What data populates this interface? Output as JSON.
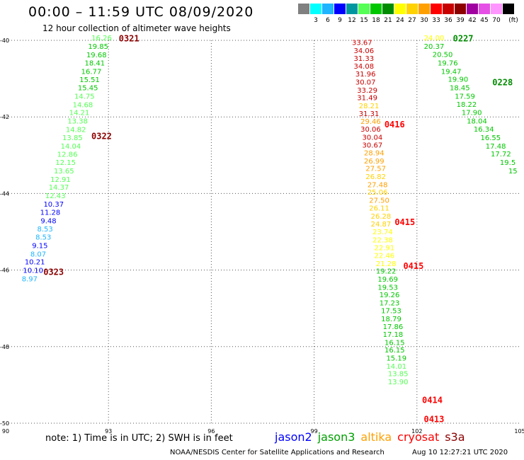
{
  "header": {
    "title": "00:00 – 11:59 UTC 08/09/2020",
    "subtitle": "12 hour collection of altimeter wave heights"
  },
  "color_scale": {
    "unit_label": "(ft)",
    "swatches": [
      {
        "color": "#808080",
        "label": ""
      },
      {
        "color": "#00ffff",
        "label": "3"
      },
      {
        "color": "#1eb4ff",
        "label": "6"
      },
      {
        "color": "#0000ff",
        "label": "9"
      },
      {
        "color": "#0096a0",
        "label": "12"
      },
      {
        "color": "#55ff55",
        "label": "15"
      },
      {
        "color": "#00c800",
        "label": "18"
      },
      {
        "color": "#008c00",
        "label": "21"
      },
      {
        "color": "#ffff00",
        "label": "24"
      },
      {
        "color": "#ffd200",
        "label": "27"
      },
      {
        "color": "#ffa000",
        "label": "30"
      },
      {
        "color": "#ff0000",
        "label": "33"
      },
      {
        "color": "#c80000",
        "label": "36"
      },
      {
        "color": "#8c0000",
        "label": "39"
      },
      {
        "color": "#a000a0",
        "label": "42"
      },
      {
        "color": "#e650e6",
        "label": "45"
      },
      {
        "color": "#ff96ff",
        "label": "70"
      },
      {
        "color": "#000000",
        "label": ""
      }
    ]
  },
  "map": {
    "lon_range": [
      90,
      105
    ],
    "lat_range": [
      -50,
      -40
    ],
    "x_ticks": [
      "90",
      "93",
      "96",
      "99",
      "102",
      "105"
    ],
    "y_ticks": [
      "-40",
      "-42",
      "-44",
      "-46",
      "-48",
      "-50"
    ],
    "grid": true
  },
  "tracks": [
    {
      "pass_labels": [
        {
          "text": "0321",
          "lon": 93.3,
          "lat": -39.95,
          "color": "#8c0000"
        },
        {
          "text": "0322",
          "lon": 92.5,
          "lat": -42.5,
          "color": "#8c0000"
        },
        {
          "text": "0323",
          "lon": 91.1,
          "lat": -46.05,
          "color": "#8c0000"
        }
      ],
      "points": [
        {
          "lon": 92.8,
          "lat": -39.93,
          "v": "16.26",
          "c": "#55ff55"
        },
        {
          "lon": 92.7,
          "lat": -40.15,
          "v": "19.85",
          "c": "#00c800"
        },
        {
          "lon": 92.65,
          "lat": -40.37,
          "v": "19.68",
          "c": "#00c800"
        },
        {
          "lon": 92.6,
          "lat": -40.58,
          "v": "18.41",
          "c": "#00c800"
        },
        {
          "lon": 92.5,
          "lat": -40.8,
          "v": "16.77",
          "c": "#00c800"
        },
        {
          "lon": 92.45,
          "lat": -41.02,
          "v": "15.51",
          "c": "#00c800"
        },
        {
          "lon": 92.4,
          "lat": -41.23,
          "v": "15.45",
          "c": "#00c800"
        },
        {
          "lon": 92.3,
          "lat": -41.45,
          "v": "14.75",
          "c": "#55ff55"
        },
        {
          "lon": 92.25,
          "lat": -41.67,
          "v": "14.68",
          "c": "#55ff55"
        },
        {
          "lon": 92.15,
          "lat": -41.88,
          "v": "14.21",
          "c": "#55ff55"
        },
        {
          "lon": 92.1,
          "lat": -42.1,
          "v": "13.38",
          "c": "#55ff55"
        },
        {
          "lon": 92.05,
          "lat": -42.32,
          "v": "14.82",
          "c": "#55ff55"
        },
        {
          "lon": 91.95,
          "lat": -42.53,
          "v": "13.85",
          "c": "#55ff55"
        },
        {
          "lon": 91.9,
          "lat": -42.75,
          "v": "14.04",
          "c": "#55ff55"
        },
        {
          "lon": 91.8,
          "lat": -42.97,
          "v": "12.86",
          "c": "#55ff55"
        },
        {
          "lon": 91.75,
          "lat": -43.18,
          "v": "12.15",
          "c": "#55ff55"
        },
        {
          "lon": 91.7,
          "lat": -43.4,
          "v": "13.65",
          "c": "#55ff55"
        },
        {
          "lon": 91.6,
          "lat": -43.62,
          "v": "12.91",
          "c": "#55ff55"
        },
        {
          "lon": 91.55,
          "lat": -43.83,
          "v": "14.37",
          "c": "#55ff55"
        },
        {
          "lon": 91.45,
          "lat": -44.05,
          "v": "12.43",
          "c": "#55ff55"
        },
        {
          "lon": 91.4,
          "lat": -44.27,
          "v": "10.37",
          "c": "#0000ff"
        },
        {
          "lon": 91.3,
          "lat": -44.48,
          "v": "11.28",
          "c": "#0000ff"
        },
        {
          "lon": 91.25,
          "lat": -44.7,
          "v": "9.48",
          "c": "#0000ff"
        },
        {
          "lon": 91.15,
          "lat": -44.92,
          "v": "8.53",
          "c": "#1eb4ff"
        },
        {
          "lon": 91.1,
          "lat": -45.13,
          "v": "8.53",
          "c": "#1eb4ff"
        },
        {
          "lon": 91.0,
          "lat": -45.35,
          "v": "9.15",
          "c": "#0000ff"
        },
        {
          "lon": 90.95,
          "lat": -45.57,
          "v": "8.07",
          "c": "#1eb4ff"
        },
        {
          "lon": 90.85,
          "lat": -45.78,
          "v": "10.21",
          "c": "#0000ff"
        },
        {
          "lon": 90.8,
          "lat": -46.0,
          "v": "10.10",
          "c": "#0000ff"
        },
        {
          "lon": 90.7,
          "lat": -46.22,
          "v": "8.97",
          "c": "#1eb4ff"
        }
      ]
    },
    {
      "pass_labels": [
        {
          "text": "0416",
          "lon": 101.05,
          "lat": -42.2,
          "color": "#ff0000"
        },
        {
          "text": "0415",
          "lon": 101.35,
          "lat": -44.75,
          "color": "#ff0000"
        },
        {
          "text": "0415",
          "lon": 101.6,
          "lat": -45.9,
          "color": "#ff0000"
        },
        {
          "text": "0414",
          "lon": 102.15,
          "lat": -49.4,
          "color": "#ff0000"
        },
        {
          "text": "0413",
          "lon": 102.2,
          "lat": -49.9,
          "color": "#ff0000"
        }
      ],
      "points": [
        {
          "lon": 100.4,
          "lat": -40.05,
          "v": "33.67",
          "c": "#c80000"
        },
        {
          "lon": 100.45,
          "lat": -40.26,
          "v": "34.06",
          "c": "#c80000"
        },
        {
          "lon": 100.45,
          "lat": -40.46,
          "v": "31.33",
          "c": "#c80000"
        },
        {
          "lon": 100.45,
          "lat": -40.67,
          "v": "34.08",
          "c": "#c80000"
        },
        {
          "lon": 100.5,
          "lat": -40.87,
          "v": "31.96",
          "c": "#c80000"
        },
        {
          "lon": 100.5,
          "lat": -41.08,
          "v": "30.07",
          "c": "#c80000"
        },
        {
          "lon": 100.55,
          "lat": -41.29,
          "v": "33.29",
          "c": "#c80000"
        },
        {
          "lon": 100.55,
          "lat": -41.49,
          "v": "31.49",
          "c": "#c80000"
        },
        {
          "lon": 100.6,
          "lat": -41.7,
          "v": "28.21",
          "c": "#ffd200"
        },
        {
          "lon": 100.6,
          "lat": -41.9,
          "v": "31.31",
          "c": "#c80000"
        },
        {
          "lon": 100.65,
          "lat": -42.11,
          "v": "29.46",
          "c": "#ffa000"
        },
        {
          "lon": 100.65,
          "lat": -42.31,
          "v": "30.06",
          "c": "#c80000"
        },
        {
          "lon": 100.7,
          "lat": -42.52,
          "v": "30.04",
          "c": "#c80000"
        },
        {
          "lon": 100.7,
          "lat": -42.73,
          "v": "30.67",
          "c": "#c80000"
        },
        {
          "lon": 100.75,
          "lat": -42.93,
          "v": "28.94",
          "c": "#ffa000"
        },
        {
          "lon": 100.75,
          "lat": -43.14,
          "v": "26.99",
          "c": "#ffa000"
        },
        {
          "lon": 100.8,
          "lat": -43.34,
          "v": "27.57",
          "c": "#ffa000"
        },
        {
          "lon": 100.8,
          "lat": -43.55,
          "v": "26.82",
          "c": "#ffd200"
        },
        {
          "lon": 100.85,
          "lat": -43.76,
          "v": "27.48",
          "c": "#ffa000"
        },
        {
          "lon": 100.85,
          "lat": -43.96,
          "v": "25.06",
          "c": "#ffd200"
        },
        {
          "lon": 100.9,
          "lat": -44.17,
          "v": "27.50",
          "c": "#ffa000"
        },
        {
          "lon": 100.9,
          "lat": -44.37,
          "v": "26.11",
          "c": "#ffd200"
        },
        {
          "lon": 100.95,
          "lat": -44.58,
          "v": "26.28",
          "c": "#ffd200"
        },
        {
          "lon": 100.95,
          "lat": -44.79,
          "v": "24.87",
          "c": "#ffd200"
        },
        {
          "lon": 101.0,
          "lat": -44.99,
          "v": "23.74",
          "c": "#ffff00"
        },
        {
          "lon": 101.0,
          "lat": -45.2,
          "v": "22.38",
          "c": "#ffff00"
        },
        {
          "lon": 101.05,
          "lat": -45.41,
          "v": "22.91",
          "c": "#ffff00"
        },
        {
          "lon": 101.05,
          "lat": -45.61,
          "v": "22.46",
          "c": "#ffff00"
        },
        {
          "lon": 101.1,
          "lat": -45.82,
          "v": "21.28",
          "c": "#ffff00"
        },
        {
          "lon": 101.1,
          "lat": -46.02,
          "v": "19.22",
          "c": "#00c800"
        },
        {
          "lon": 101.15,
          "lat": -46.23,
          "v": "19.69",
          "c": "#00c800"
        },
        {
          "lon": 101.15,
          "lat": -46.44,
          "v": "19.53",
          "c": "#00c800"
        },
        {
          "lon": 101.2,
          "lat": -46.64,
          "v": "19.26",
          "c": "#00c800"
        },
        {
          "lon": 101.2,
          "lat": -46.85,
          "v": "17.23",
          "c": "#00c800"
        },
        {
          "lon": 101.25,
          "lat": -47.05,
          "v": "17.53",
          "c": "#00c800"
        },
        {
          "lon": 101.25,
          "lat": -47.26,
          "v": "18.79",
          "c": "#00c800"
        },
        {
          "lon": 101.3,
          "lat": -47.47,
          "v": "17.86",
          "c": "#00c800"
        },
        {
          "lon": 101.3,
          "lat": -47.67,
          "v": "17.18",
          "c": "#00c800"
        },
        {
          "lon": 101.35,
          "lat": -47.88,
          "v": "16.15",
          "c": "#00c800"
        },
        {
          "lon": 101.35,
          "lat": -48.08,
          "v": "16.15",
          "c": "#00c800"
        },
        {
          "lon": 101.4,
          "lat": -48.29,
          "v": "15.19",
          "c": "#00c800"
        },
        {
          "lon": 101.4,
          "lat": -48.5,
          "v": "14.01",
          "c": "#55ff55"
        },
        {
          "lon": 101.45,
          "lat": -48.7,
          "v": "13.85",
          "c": "#55ff55"
        },
        {
          "lon": 101.45,
          "lat": -48.91,
          "v": "13.90",
          "c": "#55ff55"
        }
      ]
    },
    {
      "pass_labels": [
        {
          "text": "0227",
          "lon": 103.05,
          "lat": -39.95,
          "color": "#008c00"
        },
        {
          "text": "0228",
          "lon": 104.2,
          "lat": -41.1,
          "color": "#008c00"
        }
      ],
      "points": [
        {
          "lon": 102.5,
          "lat": -39.93,
          "v": "24.00",
          "c": "#ffff00"
        },
        {
          "lon": 102.5,
          "lat": -40.15,
          "v": "20.37",
          "c": "#00c800"
        },
        {
          "lon": 102.75,
          "lat": -40.36,
          "v": "20.50",
          "c": "#00c800"
        },
        {
          "lon": 102.9,
          "lat": -40.58,
          "v": "19.76",
          "c": "#00c800"
        },
        {
          "lon": 103.0,
          "lat": -40.8,
          "v": "19.47",
          "c": "#00c800"
        },
        {
          "lon": 103.2,
          "lat": -41.01,
          "v": "19.90",
          "c": "#00c800"
        },
        {
          "lon": 103.25,
          "lat": -41.23,
          "v": "18.45",
          "c": "#00c800"
        },
        {
          "lon": 103.4,
          "lat": -41.45,
          "v": "17.59",
          "c": "#00c800"
        },
        {
          "lon": 103.45,
          "lat": -41.66,
          "v": "18.22",
          "c": "#00c800"
        },
        {
          "lon": 103.6,
          "lat": -41.88,
          "v": "17.90",
          "c": "#00c800"
        },
        {
          "lon": 103.75,
          "lat": -42.1,
          "v": "18.04",
          "c": "#00c800"
        },
        {
          "lon": 103.95,
          "lat": -42.31,
          "v": "16.34",
          "c": "#00c800"
        },
        {
          "lon": 104.15,
          "lat": -42.53,
          "v": "16.55",
          "c": "#00c800"
        },
        {
          "lon": 104.3,
          "lat": -42.75,
          "v": "17.48",
          "c": "#00c800"
        },
        {
          "lon": 104.45,
          "lat": -42.96,
          "v": "17.72",
          "c": "#00c800"
        },
        {
          "lon": 104.65,
          "lat": -43.18,
          "v": "19.5",
          "c": "#00c800"
        },
        {
          "lon": 104.8,
          "lat": -43.4,
          "v": "15",
          "c": "#00c800"
        }
      ]
    }
  ],
  "footer": {
    "note": "note:  1) Time is in UTC; 2) SWH is in feet",
    "legend": [
      {
        "name": "jason2",
        "color": "#0000ff"
      },
      {
        "name": "jason3",
        "color": "#00a000"
      },
      {
        "name": "altika",
        "color": "#ffa000"
      },
      {
        "name": "cryosat",
        "color": "#ff0000"
      },
      {
        "name": "s3a",
        "color": "#8c0000"
      }
    ],
    "credit": "NOAA/NESDIS Center for Satellite Applications and Research",
    "timestamp": "Aug 10 12:27:21 UTC 2020"
  }
}
